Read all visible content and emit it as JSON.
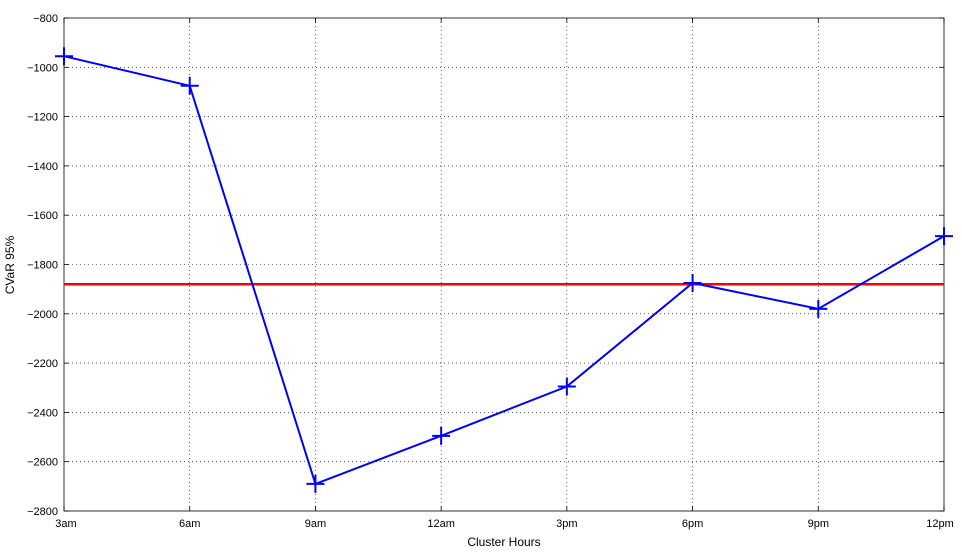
{
  "chart_data": {
    "type": "line",
    "categories": [
      "3am",
      "6am",
      "9am",
      "12am",
      "3pm",
      "6pm",
      "9pm",
      "12pm"
    ],
    "series": [
      {
        "values": [
          -955,
          -1075,
          -2690,
          -2495,
          -2295,
          -1875,
          -1980,
          -1685
        ],
        "color": "#0000ff",
        "marker": "plus"
      }
    ],
    "reference_line": {
      "value": -1880,
      "color": "#ff0000"
    },
    "xlabel": "Cluster Hours",
    "ylabel": "CVaR 95%",
    "ylim": [
      -2800,
      -800
    ],
    "yticks": [
      -800,
      -1000,
      -1200,
      -1400,
      -1600,
      -1800,
      -2000,
      -2200,
      -2400,
      -2600,
      -2800
    ],
    "ytick_labels": [
      "−800",
      "−1000",
      "−1200",
      "−1400",
      "−1600",
      "−1800",
      "−2000",
      "−2200",
      "−2400",
      "−2600",
      "−2800"
    ],
    "grid": true
  }
}
